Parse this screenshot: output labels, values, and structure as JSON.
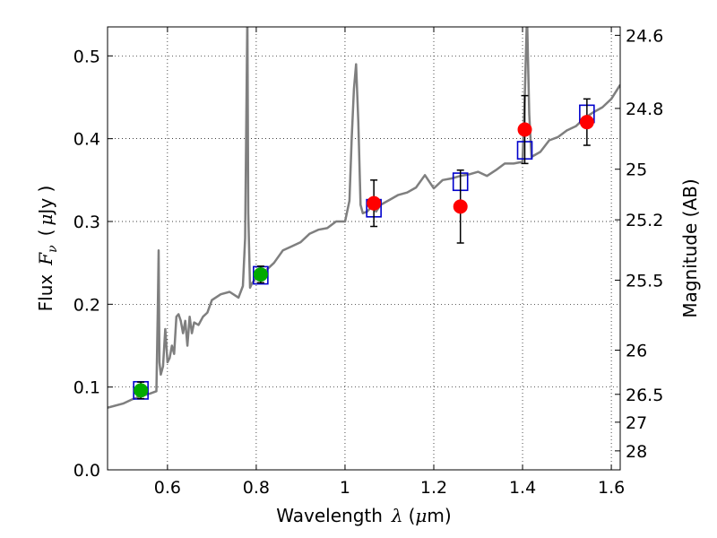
{
  "chart_data": {
    "type": "scatter",
    "xlabel_prefix": "Wavelength",
    "xlabel_symbol": "λ",
    "xlabel_unit_open": "(",
    "xlabel_unit_mu": "μ",
    "xlabel_unit_rest": "m)",
    "ylabel_prefix": "Flux",
    "ylabel_symbol": "F",
    "ylabel_sub": "ν",
    "ylabel_unit_open": "(",
    "ylabel_unit_mu": "μ",
    "ylabel_unit_rest": "Jy )",
    "y2label": "Magnitude (AB)",
    "xlim": [
      0.465,
      1.62
    ],
    "ylim": [
      0.0,
      0.535
    ],
    "grid": true,
    "x_ticks": [
      {
        "value": 0.6,
        "label": "0.6"
      },
      {
        "value": 0.8,
        "label": "0.8"
      },
      {
        "value": 1.0,
        "label": "1"
      },
      {
        "value": 1.2,
        "label": "1.2"
      },
      {
        "value": 1.4,
        "label": "1.4"
      },
      {
        "value": 1.6,
        "label": "1.6"
      }
    ],
    "y_ticks": [
      {
        "value": 0.0,
        "label": "0.0"
      },
      {
        "value": 0.1,
        "label": "0.1"
      },
      {
        "value": 0.2,
        "label": "0.2"
      },
      {
        "value": 0.3,
        "label": "0.3"
      },
      {
        "value": 0.4,
        "label": "0.4"
      },
      {
        "value": 0.5,
        "label": "0.5"
      }
    ],
    "y2_ticks": [
      {
        "value": 24.6,
        "label": "24.6"
      },
      {
        "value": 24.8,
        "label": "24.8"
      },
      {
        "value": 25.0,
        "label": "25"
      },
      {
        "value": 25.2,
        "label": "25.2"
      },
      {
        "value": 25.5,
        "label": "25.5"
      },
      {
        "value": 26.0,
        "label": "26"
      },
      {
        "value": 26.5,
        "label": "26.5"
      },
      {
        "value": 27.0,
        "label": "27"
      },
      {
        "value": 28.0,
        "label": "28"
      }
    ],
    "model_spectrum": {
      "color": "#7f7f7f",
      "x": [
        0.465,
        0.5,
        0.52,
        0.54,
        0.56,
        0.575,
        0.578,
        0.58,
        0.582,
        0.585,
        0.59,
        0.595,
        0.6,
        0.605,
        0.61,
        0.615,
        0.62,
        0.625,
        0.63,
        0.635,
        0.64,
        0.645,
        0.65,
        0.655,
        0.66,
        0.67,
        0.68,
        0.69,
        0.7,
        0.72,
        0.74,
        0.76,
        0.77,
        0.775,
        0.78,
        0.782,
        0.786,
        0.79,
        0.8,
        0.82,
        0.84,
        0.86,
        0.88,
        0.9,
        0.92,
        0.94,
        0.96,
        0.98,
        1.0,
        1.01,
        1.015,
        1.02,
        1.025,
        1.03,
        1.035,
        1.04,
        1.05,
        1.06,
        1.07,
        1.08,
        1.1,
        1.12,
        1.14,
        1.16,
        1.18,
        1.2,
        1.22,
        1.24,
        1.26,
        1.28,
        1.3,
        1.32,
        1.34,
        1.36,
        1.38,
        1.4,
        1.405,
        1.41,
        1.415,
        1.42,
        1.44,
        1.46,
        1.48,
        1.5,
        1.52,
        1.54,
        1.56,
        1.58,
        1.6,
        1.62
      ],
      "y": [
        0.075,
        0.08,
        0.085,
        0.089,
        0.092,
        0.095,
        0.19,
        0.265,
        0.13,
        0.115,
        0.125,
        0.17,
        0.13,
        0.135,
        0.15,
        0.14,
        0.185,
        0.188,
        0.18,
        0.165,
        0.18,
        0.15,
        0.185,
        0.165,
        0.178,
        0.175,
        0.185,
        0.19,
        0.205,
        0.212,
        0.215,
        0.208,
        0.222,
        0.28,
        0.55,
        0.31,
        0.22,
        0.225,
        0.232,
        0.24,
        0.25,
        0.265,
        0.27,
        0.275,
        0.285,
        0.29,
        0.292,
        0.3,
        0.3,
        0.325,
        0.4,
        0.46,
        0.49,
        0.42,
        0.32,
        0.31,
        0.312,
        0.318,
        0.312,
        0.32,
        0.326,
        0.332,
        0.335,
        0.341,
        0.356,
        0.34,
        0.35,
        0.352,
        0.355,
        0.357,
        0.36,
        0.355,
        0.362,
        0.37,
        0.37,
        0.372,
        0.45,
        0.55,
        0.43,
        0.378,
        0.384,
        0.398,
        0.402,
        0.41,
        0.415,
        0.425,
        0.432,
        0.438,
        0.448,
        0.465
      ]
    },
    "synthetic_photometry": {
      "color": "#0000cc",
      "x": [
        0.54,
        0.81,
        1.065,
        1.26,
        1.405,
        1.545
      ],
      "y": [
        0.096,
        0.235,
        0.316,
        0.348,
        0.386,
        0.43
      ]
    },
    "observed_green": {
      "color": "#00aa00",
      "points": [
        {
          "x": 0.54,
          "y": 0.096,
          "yerr": 0.01
        },
        {
          "x": 0.81,
          "y": 0.236,
          "yerr": 0.01
        }
      ]
    },
    "observed_red": {
      "color": "#ff0000",
      "points": [
        {
          "x": 1.065,
          "y": 0.322,
          "yerr": 0.028
        },
        {
          "x": 1.26,
          "y": 0.318,
          "yerr": 0.044
        },
        {
          "x": 1.405,
          "y": 0.411,
          "yerr": 0.041
        },
        {
          "x": 1.545,
          "y": 0.42,
          "yerr": 0.028
        }
      ]
    }
  }
}
